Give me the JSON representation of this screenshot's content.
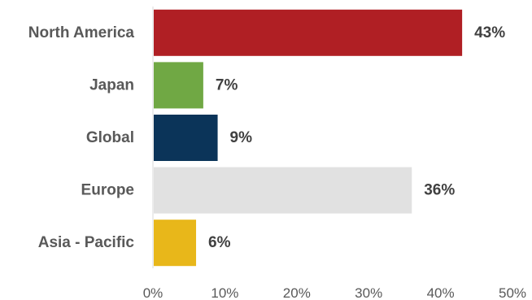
{
  "chart_data": {
    "type": "bar",
    "orientation": "horizontal",
    "categories": [
      "North America",
      "Japan",
      "Global",
      "Europe",
      "Asia - Pacific"
    ],
    "values": [
      43,
      7,
      9,
      36,
      6
    ],
    "value_labels": [
      "43%",
      "7%",
      "9%",
      "36%",
      "6%"
    ],
    "colors": [
      "#b01f24",
      "#70a844",
      "#0b3459",
      "#e1e1e1",
      "#e8b71a"
    ],
    "xlim": [
      0,
      50
    ],
    "xticks": [
      0,
      10,
      20,
      30,
      40,
      50
    ],
    "xtick_labels": [
      "0%",
      "10%",
      "20%",
      "30%",
      "40%",
      "50%"
    ],
    "title": "",
    "xlabel": "",
    "ylabel": "",
    "grid": false,
    "legend": "none"
  }
}
